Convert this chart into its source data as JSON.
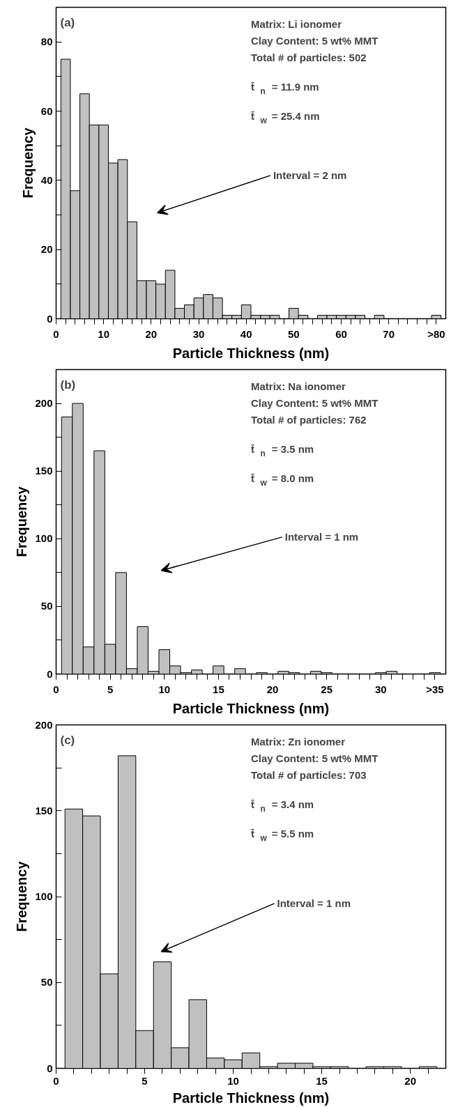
{
  "chart_data": [
    {
      "type": "histogram",
      "xlabel": "Particle Thickness (nm)",
      "ylabel": "Frequency",
      "color": "#c0c0c0",
      "bins": [
        1,
        3,
        5,
        7,
        9,
        11,
        13,
        15,
        17,
        19,
        21,
        23,
        25,
        27,
        29,
        31,
        33,
        35,
        37,
        39,
        41,
        43,
        45,
        47,
        49,
        51,
        53,
        55,
        57,
        59,
        61,
        63,
        65,
        67,
        69,
        71,
        73,
        75,
        77,
        79,
        81
      ],
      "values": [
        75,
        37,
        65,
        56,
        56,
        45,
        46,
        28,
        11,
        11,
        10,
        14,
        3,
        4,
        6,
        7,
        6,
        1,
        1,
        4,
        1,
        1,
        1,
        0,
        3,
        1,
        0,
        1,
        1,
        1,
        1,
        1,
        0,
        1,
        0,
        0,
        0,
        0,
        0,
        1
      ],
      "xlim": [
        0,
        82
      ],
      "ylim": [
        0,
        90
      ],
      "xticks": [
        0,
        {
          "value": 2,
          "label": null
        },
        {
          "value": 4,
          "label": null
        },
        {
          "value": 6,
          "label": null
        },
        {
          "value": 8,
          "label": null
        },
        10,
        {
          "value": 12,
          "label": null
        },
        {
          "value": 14,
          "label": null
        },
        {
          "value": 16,
          "label": null
        },
        {
          "value": 18,
          "label": null
        },
        20,
        {
          "value": 22,
          "label": null
        },
        {
          "value": 24,
          "label": null
        },
        {
          "value": 26,
          "label": null
        },
        {
          "value": 28,
          "label": null
        },
        30,
        {
          "value": 32,
          "label": null
        },
        {
          "value": 34,
          "label": null
        },
        {
          "value": 36,
          "label": null
        },
        {
          "value": 38,
          "label": null
        },
        40,
        {
          "value": 42,
          "label": null
        },
        {
          "value": 44,
          "label": null
        },
        {
          "value": 46,
          "label": null
        },
        {
          "value": 48,
          "label": null
        },
        50,
        {
          "value": 52,
          "label": null
        },
        {
          "value": 54,
          "label": null
        },
        {
          "value": 56,
          "label": null
        },
        {
          "value": 58,
          "label": null
        },
        60,
        {
          "value": 62,
          "label": null
        },
        {
          "value": 64,
          "label": null
        },
        {
          "value": 66,
          "label": null
        },
        {
          "value": 68,
          "label": null
        },
        70,
        {
          "value": 72,
          "label": null
        },
        {
          "value": 74,
          "label": null
        },
        {
          "value": 76,
          "label": null
        },
        {
          "value": 78,
          "label": null
        },
        {
          "value": 80,
          "label": ">80"
        }
      ],
      "yticks": [
        0,
        {
          "value": 10,
          "label": null
        },
        20,
        {
          "value": 30,
          "label": null
        },
        40,
        {
          "value": 50,
          "label": null
        },
        60,
        {
          "value": 70,
          "label": null
        },
        80
      ],
      "annotations": [
        "(a)",
        "Matrix: Li ionomer",
        "Clay Content: 5 wt% MMT",
        "Total # of particles: 502",
        "t̄$_{n}$ = 11.9 nm",
        "t̄$_{w}$ = 25.4 nm",
        "Interval = 2 nm"
      ]
    },
    {
      "type": "histogram",
      "xlabel": "Particle Thickness (nm)",
      "ylabel": "Frequency",
      "color": "#c0c0c0",
      "bins": [
        0.5,
        1.5,
        2.5,
        3.5,
        4.5,
        5.5,
        6.5,
        7.5,
        8.5,
        9.5,
        10.5,
        11.5,
        12.5,
        13.5,
        14.5,
        15.5,
        16.5,
        17.5,
        18.5,
        19.5,
        20.5,
        21.5,
        22.5,
        23.5,
        24.5,
        25.5,
        26.5,
        27.5,
        28.5,
        29.5,
        30.5,
        31.5,
        32.5,
        33.5,
        34.5,
        35.5
      ],
      "values": [
        190,
        200,
        20,
        165,
        22,
        75,
        4,
        35,
        2,
        18,
        6,
        1,
        3,
        0,
        6,
        0,
        4,
        0,
        1,
        0,
        2,
        1,
        0,
        2,
        1,
        0,
        0,
        0,
        0,
        1,
        2,
        0,
        0,
        0,
        1
      ],
      "xlim": [
        0,
        36
      ],
      "ylim": [
        0,
        225
      ],
      "xticks": [
        0,
        {
          "value": 1,
          "label": null
        },
        {
          "value": 2,
          "label": null
        },
        {
          "value": 3,
          "label": null
        },
        {
          "value": 4,
          "label": null
        },
        5,
        {
          "value": 6,
          "label": null
        },
        {
          "value": 7,
          "label": null
        },
        {
          "value": 8,
          "label": null
        },
        {
          "value": 9,
          "label": null
        },
        10,
        {
          "value": 11,
          "label": null
        },
        {
          "value": 12,
          "label": null
        },
        {
          "value": 13,
          "label": null
        },
        {
          "value": 14,
          "label": null
        },
        15,
        {
          "value": 16,
          "label": null
        },
        {
          "value": 17,
          "label": null
        },
        {
          "value": 18,
          "label": null
        },
        {
          "value": 19,
          "label": null
        },
        20,
        {
          "value": 21,
          "label": null
        },
        {
          "value": 22,
          "label": null
        },
        {
          "value": 23,
          "label": null
        },
        {
          "value": 24,
          "label": null
        },
        25,
        {
          "value": 26,
          "label": null
        },
        {
          "value": 27,
          "label": null
        },
        {
          "value": 28,
          "label": null
        },
        {
          "value": 29,
          "label": null
        },
        30,
        {
          "value": 31,
          "label": null
        },
        {
          "value": 32,
          "label": null
        },
        {
          "value": 33,
          "label": null
        },
        {
          "value": 34,
          "label": null
        },
        {
          "value": 35,
          "label": ">35"
        }
      ],
      "yticks": [
        0,
        {
          "value": 25,
          "label": null
        },
        50,
        {
          "value": 75,
          "label": null
        },
        100,
        {
          "value": 125,
          "label": null
        },
        150,
        {
          "value": 175,
          "label": null
        },
        200
      ],
      "annotations": [
        "(b)",
        "Matrix: Na ionomer",
        "Clay Content: 5 wt% MMT",
        "Total # of particles: 762",
        "t̄$_{n}$ = 3.5 nm",
        "t̄$_{w}$ = 8.0 nm",
        "Interval = 1 nm"
      ]
    },
    {
      "type": "histogram",
      "xlabel": "Particle Thickness (nm)",
      "ylabel": "Frequency",
      "color": "#c0c0c0",
      "bins": [
        0.5,
        1.5,
        2.5,
        3.5,
        4.5,
        5.5,
        6.5,
        7.5,
        8.5,
        9.5,
        10.5,
        11.5,
        12.5,
        13.5,
        14.5,
        15.5,
        16.5,
        17.5,
        18.5,
        19.5,
        20.5,
        21.5
      ],
      "values": [
        151,
        147,
        55,
        182,
        22,
        62,
        12,
        40,
        6,
        5,
        9,
        1,
        3,
        3,
        1,
        1,
        0,
        1,
        1,
        0,
        1
      ],
      "xlim": [
        0,
        22
      ],
      "ylim": [
        0,
        200
      ],
      "xticks": [
        0,
        {
          "value": 1,
          "label": null
        },
        {
          "value": 2,
          "label": null
        },
        {
          "value": 3,
          "label": null
        },
        {
          "value": 4,
          "label": null
        },
        5,
        {
          "value": 6,
          "label": null
        },
        {
          "value": 7,
          "label": null
        },
        {
          "value": 8,
          "label": null
        },
        {
          "value": 9,
          "label": null
        },
        10,
        {
          "value": 11,
          "label": null
        },
        {
          "value": 12,
          "label": null
        },
        {
          "value": 13,
          "label": null
        },
        {
          "value": 14,
          "label": null
        },
        15,
        {
          "value": 16,
          "label": null
        },
        {
          "value": 17,
          "label": null
        },
        {
          "value": 18,
          "label": null
        },
        {
          "value": 19,
          "label": null
        },
        20,
        {
          "value": 21,
          "label": null
        }
      ],
      "yticks": [
        0,
        {
          "value": 25,
          "label": null
        },
        50,
        {
          "value": 75,
          "label": null
        },
        100,
        {
          "value": 125,
          "label": null
        },
        150,
        {
          "value": 175,
          "label": null
        },
        200
      ],
      "annotations": [
        "(c)",
        "Matrix: Zn ionomer",
        "Clay Content: 5 wt% MMT",
        "Total # of particles: 703",
        "t̄$_{n}$ = 3.4 nm",
        "t̄$_{w}$ = 5.5 nm",
        "Interval = 1 nm"
      ]
    }
  ]
}
